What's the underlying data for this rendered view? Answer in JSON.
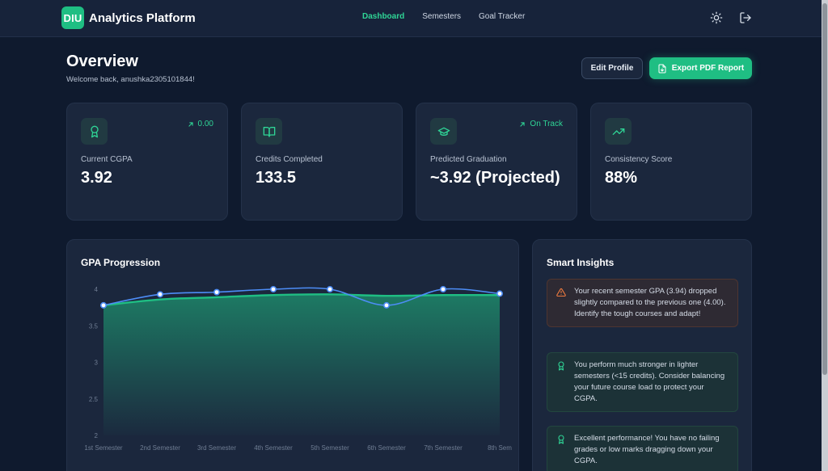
{
  "header": {
    "brand_logo": "DIU",
    "brand_name": "Analytics Platform",
    "nav": [
      "Dashboard",
      "Semesters",
      "Goal Tracker"
    ],
    "active_nav": "Dashboard",
    "icons": [
      "sun-icon",
      "logout-icon"
    ]
  },
  "overview": {
    "title": "Overview",
    "welcome": "Welcome back, anushka2305101844!",
    "edit_label": "Edit Profile",
    "export_label": "Export PDF Report"
  },
  "stats": [
    {
      "icon": "award-icon",
      "label": "Current CGPA",
      "value": "3.92",
      "trend": "0.00"
    },
    {
      "icon": "book-icon",
      "label": "Credits Completed",
      "value": "133.5",
      "trend": ""
    },
    {
      "icon": "graduation-cap-icon",
      "label": "Predicted Graduation",
      "value": "~3.92 (Projected)",
      "trend": "On Track"
    },
    {
      "icon": "trending-up-icon",
      "label": "Consistency Score",
      "value": "88%",
      "trend": ""
    }
  ],
  "chart": {
    "title": "GPA Progression"
  },
  "chart_data": {
    "type": "line",
    "categories": [
      "1st Semester",
      "2nd Semester",
      "3rd Semester",
      "4th Semester",
      "5th Semester",
      "6th Semester",
      "7th Semester",
      "8th Sem"
    ],
    "series": [
      {
        "values": [
          3.78,
          3.93,
          3.96,
          4.0,
          4.0,
          3.78,
          4.0,
          3.94
        ],
        "color": "#4d8df7"
      },
      {
        "values": [
          3.78,
          3.86,
          3.89,
          3.92,
          3.93,
          3.91,
          3.92,
          3.92
        ],
        "color": "#1fbe83"
      }
    ],
    "ylim": [
      2,
      4
    ],
    "yticks": [
      "2",
      "2.5",
      "3",
      "3.5",
      "4"
    ],
    "grid": false
  },
  "insights": {
    "title": "Smart Insights",
    "items": [
      {
        "type": "warning",
        "icon": "alert-triangle-icon",
        "text": "Your recent semester GPA (3.94) dropped slightly compared to the previous one (4.00). Identify the tough courses and adapt!"
      },
      {
        "type": "success",
        "icon": "award-icon",
        "text": "You perform much stronger in lighter semesters (<15 credits). Consider balancing your future course load to protect your CGPA."
      },
      {
        "type": "success",
        "icon": "award-icon",
        "text": "Excellent performance! You have no failing grades or low marks dragging down your CGPA."
      }
    ]
  },
  "colors": {
    "accent": "#1fbe83",
    "background": "#0f1a2e",
    "card": "#1b273d",
    "warning": "#f07b3f"
  }
}
